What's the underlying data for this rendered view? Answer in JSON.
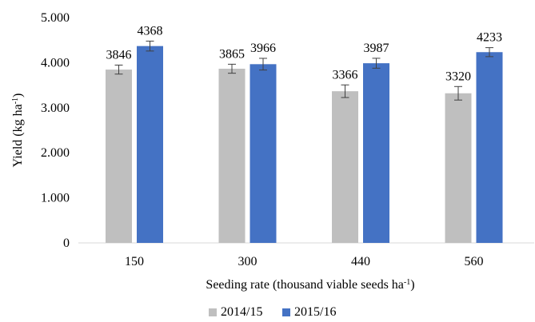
{
  "chart_data": {
    "type": "bar",
    "categories": [
      "150",
      "300",
      "440",
      "560"
    ],
    "series": [
      {
        "name": "2014/15",
        "color": "#bfbfbf",
        "values": [
          3846,
          3865,
          3366,
          3320
        ],
        "errors": [
          100,
          100,
          140,
          150
        ],
        "labels": [
          "3846",
          "3865",
          "3366",
          "3320"
        ]
      },
      {
        "name": "2015/16",
        "color": "#4472c4",
        "values": [
          4368,
          3966,
          3987,
          4233
        ],
        "errors": [
          110,
          130,
          110,
          100
        ],
        "labels": [
          "4368",
          "3966",
          "3987",
          "4233"
        ]
      }
    ],
    "ylim": [
      0,
      5000
    ],
    "yticks": [
      0,
      1000,
      2000,
      3000,
      4000,
      5000
    ],
    "ytick_labels": [
      "0",
      "1.000",
      "2.000",
      "3.000",
      "4.000",
      "5.000"
    ],
    "ylabel": {
      "main": "Yield (kg ha",
      "sup": "-1",
      "end": ")"
    },
    "xlabel": {
      "main": "Seeding rate (thousand viable seeds ha",
      "sup": "-1",
      "end": ")"
    },
    "legend_position": "bottom",
    "grid": false
  }
}
